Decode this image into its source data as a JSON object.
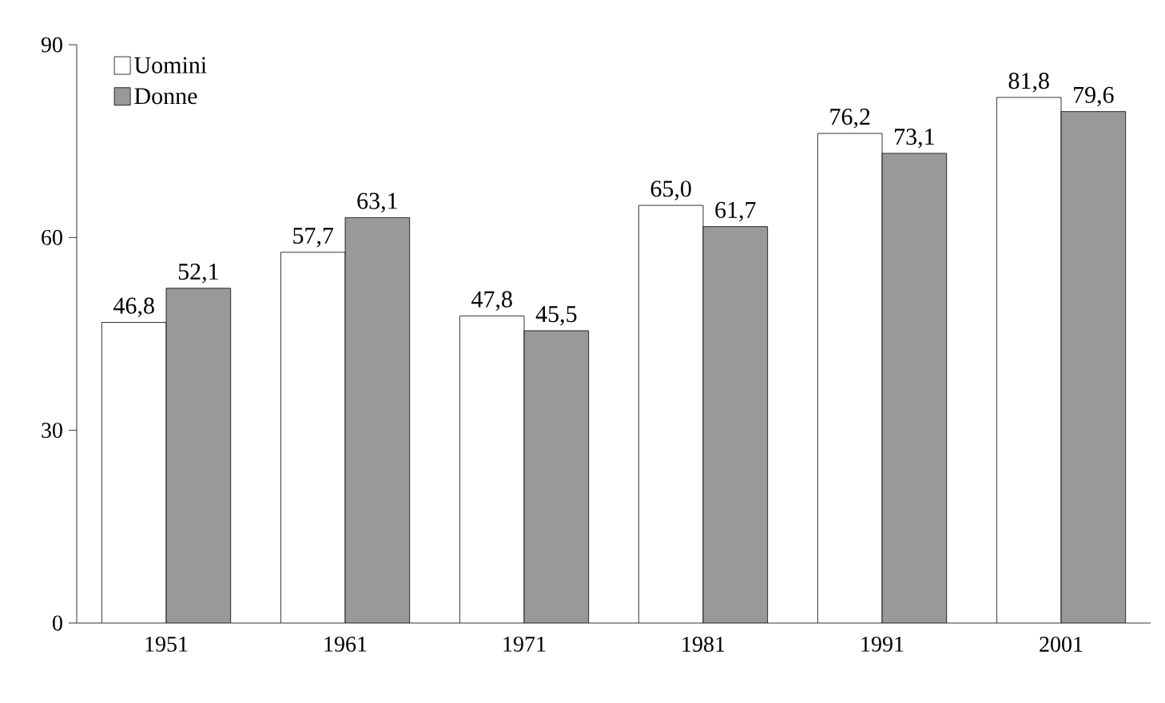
{
  "chart_data": {
    "type": "bar",
    "categories": [
      "1951",
      "1961",
      "1971",
      "1981",
      "1991",
      "2001"
    ],
    "series": [
      {
        "name": "Uomini",
        "color": "#ffffff",
        "values": [
          46.8,
          57.7,
          47.8,
          65.0,
          76.2,
          81.8
        ],
        "value_labels": [
          "46,8",
          "57,7",
          "47,8",
          "65,0",
          "76,2",
          "81,8"
        ]
      },
      {
        "name": "Donne",
        "color": "#999999",
        "values": [
          52.1,
          63.1,
          45.5,
          61.7,
          73.1,
          79.6
        ],
        "value_labels": [
          "52,1",
          "63,1",
          "45,5",
          "61,7",
          "73,1",
          "79,6"
        ]
      }
    ],
    "ylim": [
      0,
      90
    ],
    "yticks": [
      0,
      30,
      60,
      90
    ],
    "grid": false,
    "legend": "top left"
  }
}
